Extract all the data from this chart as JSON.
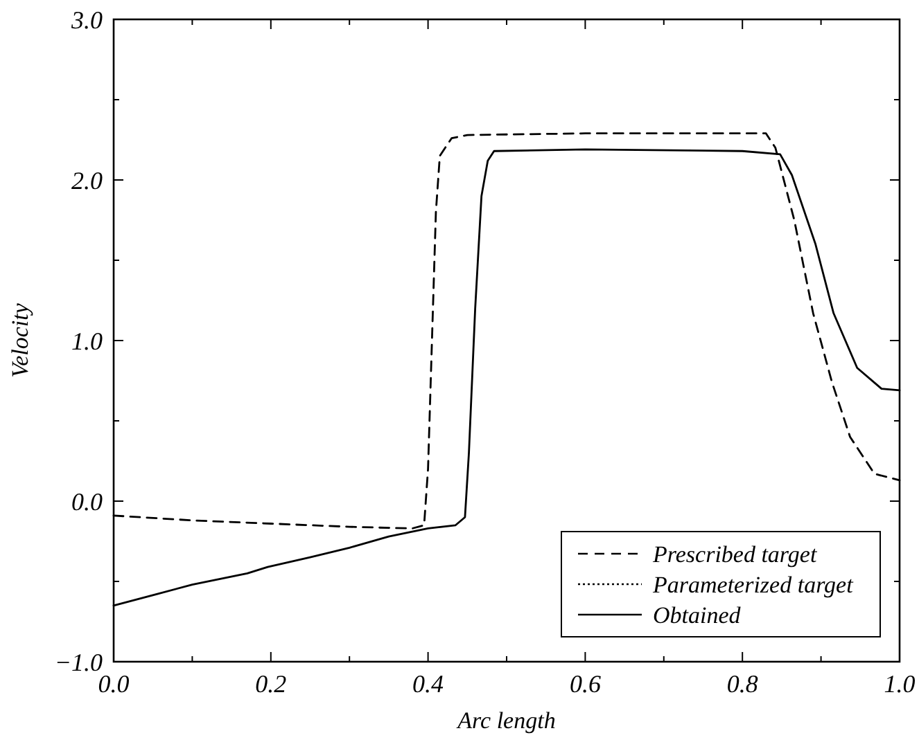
{
  "chart_data": {
    "type": "line",
    "xlabel": "Arc length",
    "ylabel": "Velocity",
    "xlim": [
      0,
      1
    ],
    "ylim": [
      -1,
      3
    ],
    "xticks": [
      {
        "value": 0,
        "label": "0.0"
      },
      {
        "value": 0.1,
        "label": null
      },
      {
        "value": 0.2,
        "label": "0.2"
      },
      {
        "value": 0.3,
        "label": null
      },
      {
        "value": 0.4,
        "label": "0.4"
      },
      {
        "value": 0.5,
        "label": null
      },
      {
        "value": 0.6,
        "label": "0.6"
      },
      {
        "value": 0.7,
        "label": null
      },
      {
        "value": 0.8,
        "label": "0.8"
      },
      {
        "value": 0.9,
        "label": null
      },
      {
        "value": 1,
        "label": "1.0"
      }
    ],
    "yticks": [
      {
        "value": -1,
        "label": "−1.0"
      },
      {
        "value": -0.5,
        "label": null
      },
      {
        "value": 0,
        "label": "0.0"
      },
      {
        "value": 0.5,
        "label": null
      },
      {
        "value": 1,
        "label": "1.0"
      },
      {
        "value": 1.5,
        "label": null
      },
      {
        "value": 2,
        "label": "2.0"
      },
      {
        "value": 2.5,
        "label": null
      },
      {
        "value": 3,
        "label": "3.0"
      }
    ],
    "grid": false,
    "legend": "bottom right",
    "marker": "none",
    "series": [
      {
        "name": "Prescribed target",
        "color": "#000000",
        "line_style": "dashed",
        "x": [
          0,
          0.1,
          0.2,
          0.3,
          0.38,
          0.395,
          0.4,
          0.405,
          0.41,
          0.415,
          0.43,
          0.45,
          0.6,
          0.83,
          0.842,
          0.866,
          0.89,
          0.914,
          0.937,
          0.968,
          1.0
        ],
        "values": [
          -0.09,
          -0.12,
          -0.14,
          -0.16,
          -0.17,
          -0.15,
          0.2,
          1.0,
          1.8,
          2.15,
          2.26,
          2.28,
          2.29,
          2.29,
          2.2,
          1.75,
          1.17,
          0.74,
          0.4,
          0.17,
          0.13
        ]
      },
      {
        "name": "Parameterized target",
        "color": "#000000",
        "line_style": "dotted"
      },
      {
        "name": "Obtained",
        "color": "#000000",
        "line_style": "solid",
        "x": [
          0,
          0.054,
          0.1,
          0.17,
          0.196,
          0.25,
          0.3,
          0.35,
          0.4,
          0.435,
          0.447,
          0.452,
          0.46,
          0.468,
          0.476,
          0.484,
          0.6,
          0.8,
          0.848,
          0.863,
          0.893,
          0.916,
          0.946,
          0.977,
          1.0
        ],
        "values": [
          -0.65,
          -0.58,
          -0.52,
          -0.45,
          -0.41,
          -0.35,
          -0.29,
          -0.22,
          -0.17,
          -0.15,
          -0.1,
          0.3,
          1.2,
          1.9,
          2.12,
          2.18,
          2.19,
          2.18,
          2.16,
          2.03,
          1.6,
          1.17,
          0.83,
          0.7,
          0.69
        ]
      }
    ]
  }
}
